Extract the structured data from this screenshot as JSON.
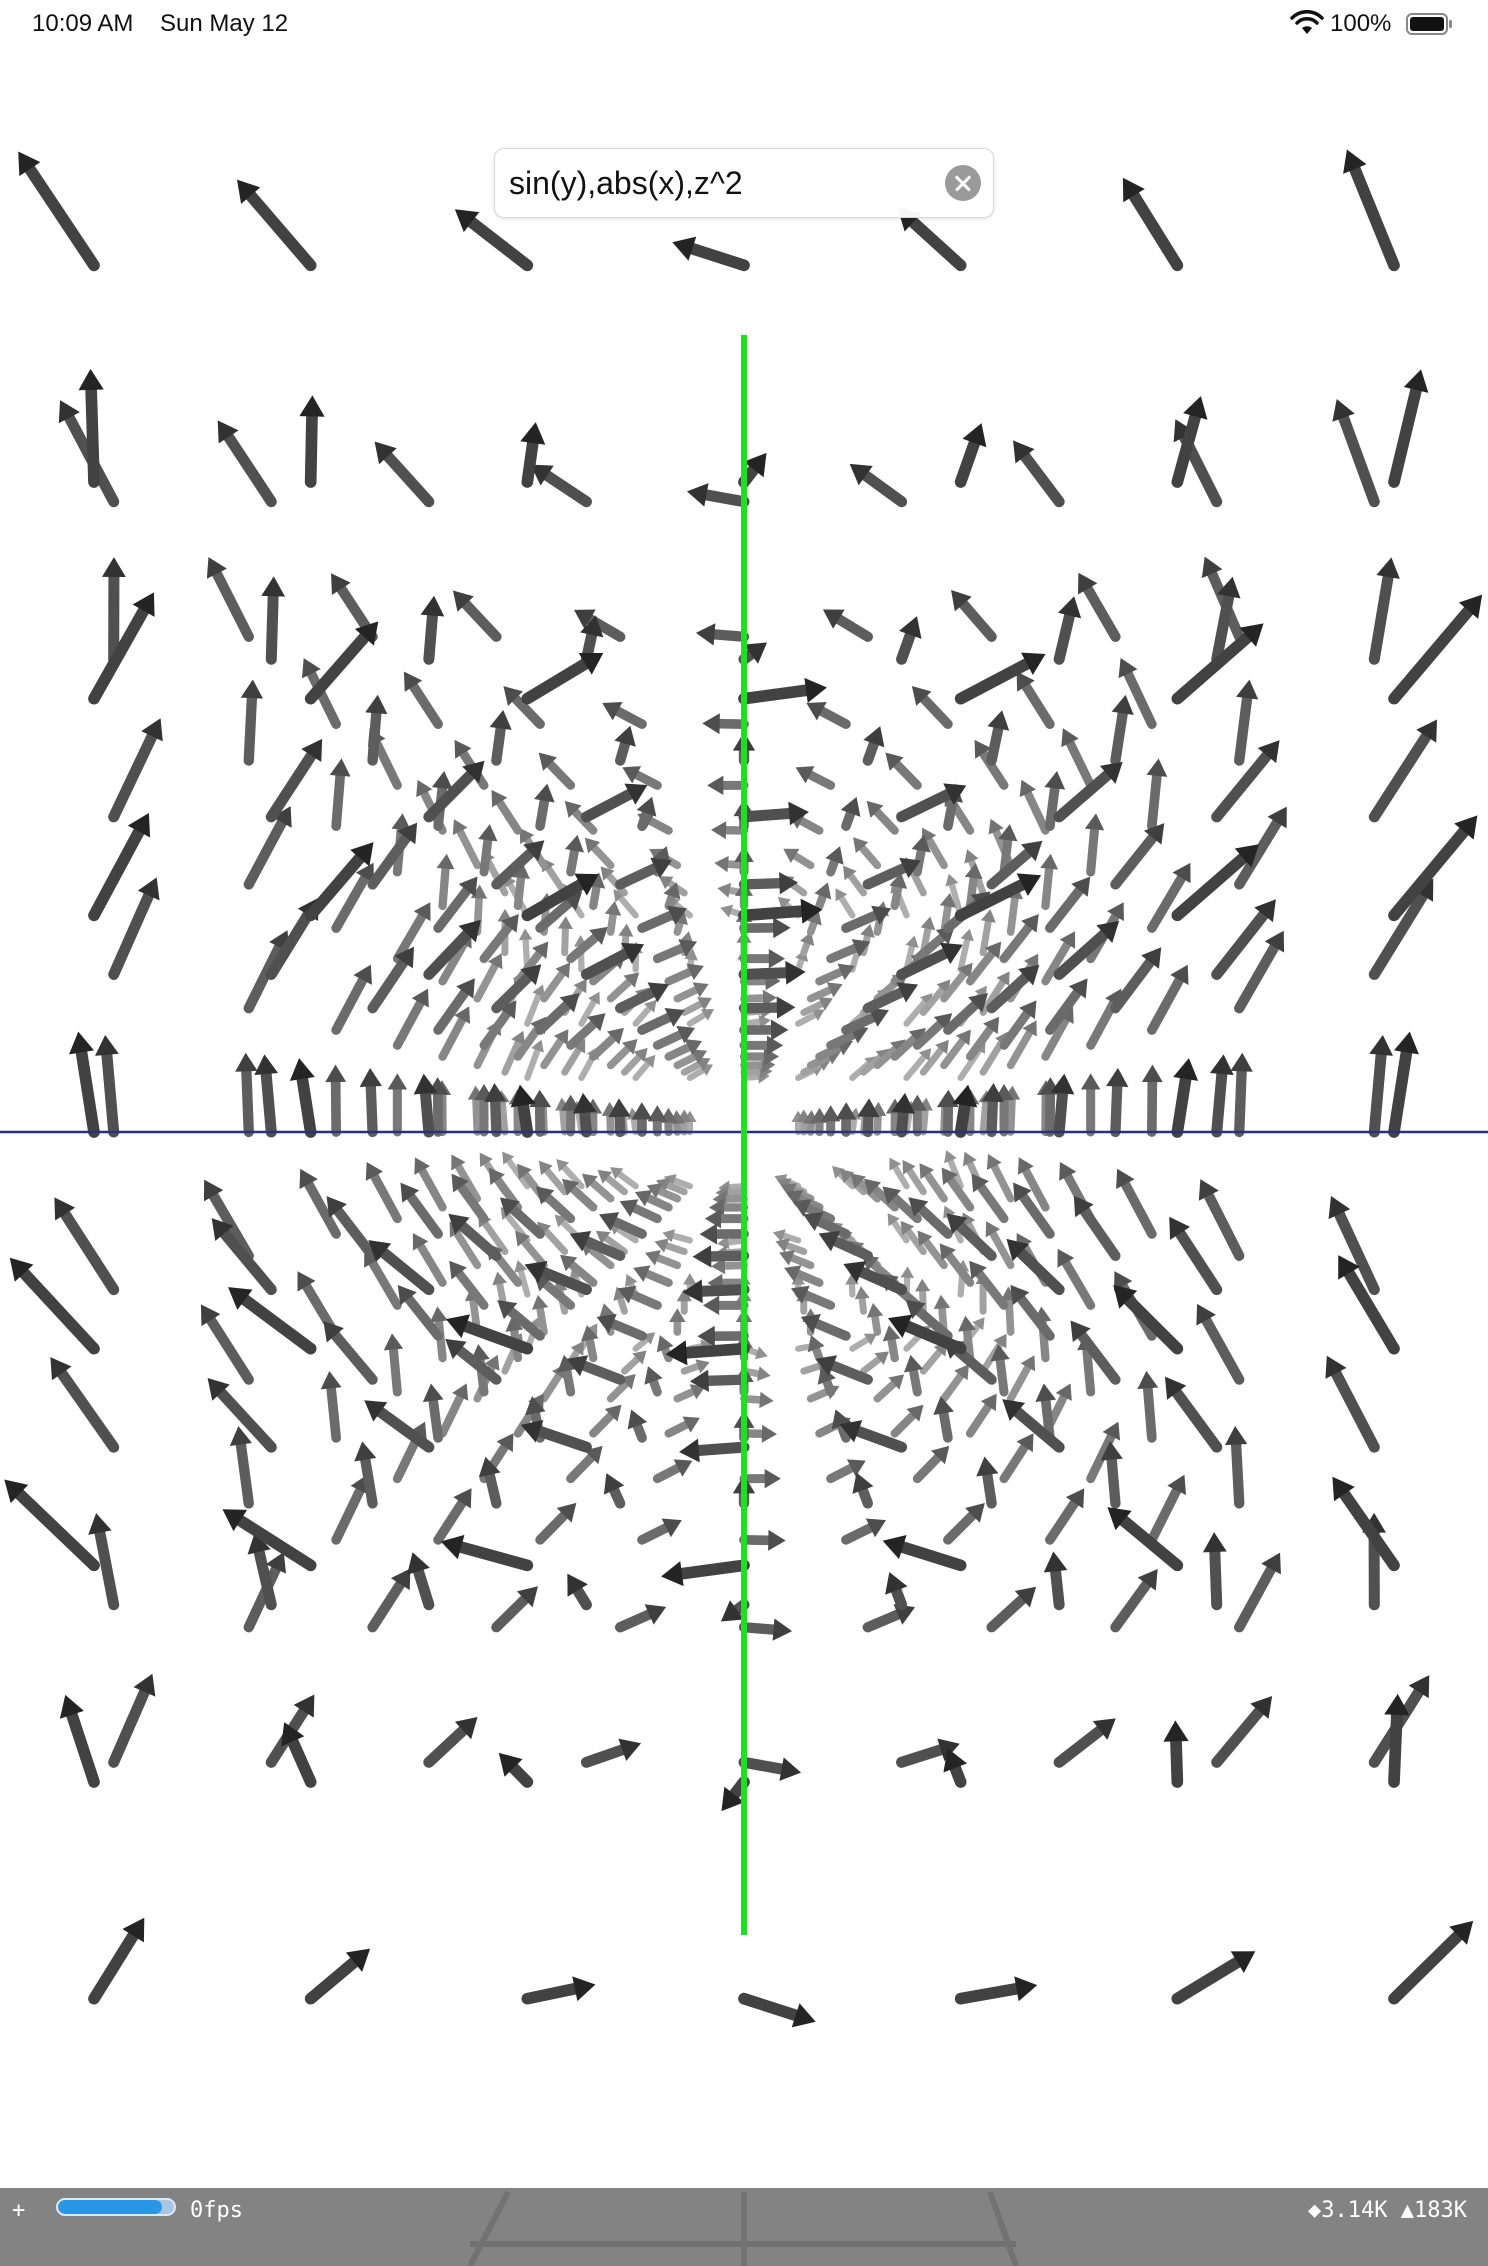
{
  "status_bar": {
    "time": "10:09 AM",
    "date": "Sun May 12",
    "battery": "100%"
  },
  "search": {
    "value": "sin(y),abs(x),z^2"
  },
  "stats": {
    "plus": "+",
    "fps": "0fps",
    "fps_fill": 0.9,
    "counts": "◆3.14K ▲183K"
  },
  "scene": {
    "axes": {
      "y_axis_color": "#22dd22",
      "x_axis_color": "#2b2f80"
    }
  }
}
